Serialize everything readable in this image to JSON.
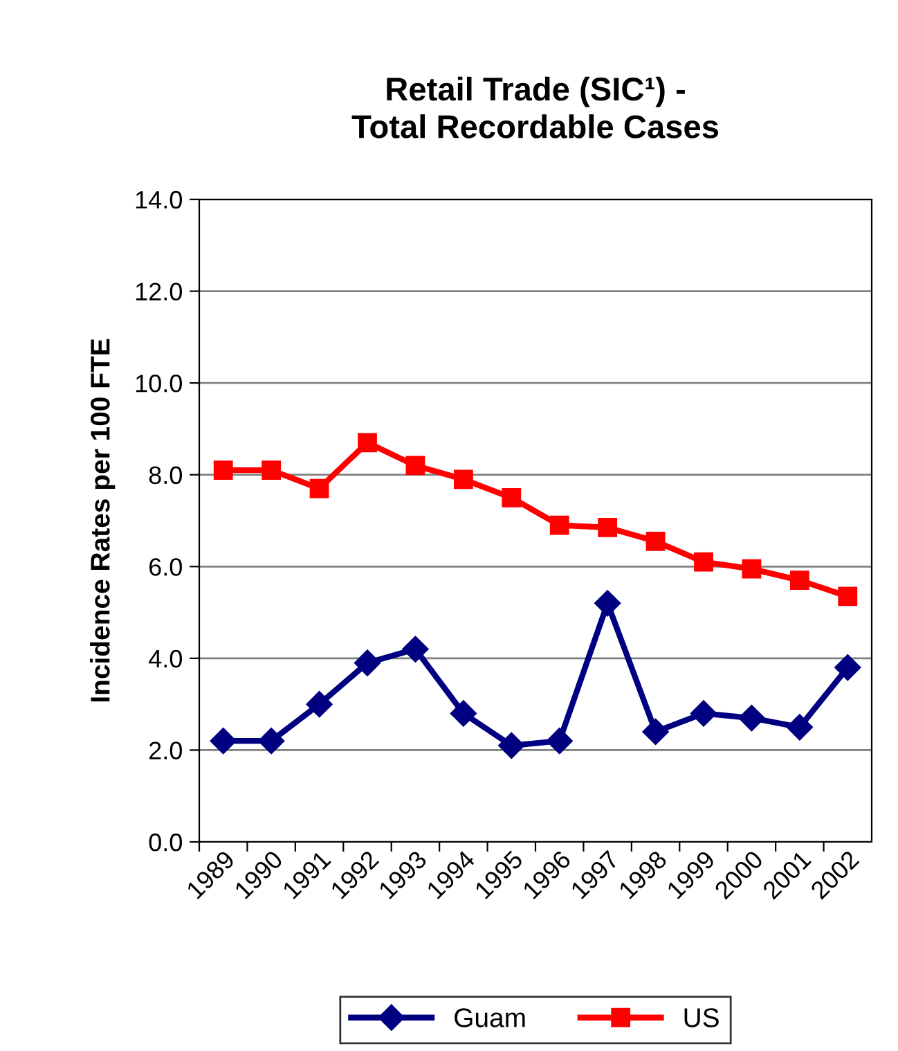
{
  "chart_data": {
    "type": "line",
    "title": "Retail Trade (SIC¹) -\nTotal Recordable Cases",
    "ylabel": "Incidence Rates per 100 FTE",
    "categories": [
      "1989",
      "1990",
      "1991",
      "1992",
      "1993",
      "1994",
      "1995",
      "1996",
      "1997",
      "1998",
      "1999",
      "2000",
      "2001",
      "2002"
    ],
    "series": [
      {
        "name": "Guam",
        "color": "#000080",
        "marker": "diamond",
        "values": [
          2.2,
          2.2,
          3.0,
          3.9,
          4.2,
          2.8,
          2.1,
          2.2,
          5.2,
          2.4,
          2.8,
          2.7,
          2.5,
          3.8
        ]
      },
      {
        "name": "US",
        "color": "#ff0000",
        "marker": "square",
        "values": [
          8.1,
          8.1,
          7.7,
          8.7,
          8.2,
          7.9,
          7.5,
          6.9,
          6.85,
          6.55,
          6.1,
          5.95,
          5.7,
          5.35
        ]
      }
    ],
    "ylim": [
      0,
      14
    ],
    "yticks": [
      {
        "value": 0,
        "label": "0.0"
      },
      {
        "value": 2,
        "label": "2.0"
      },
      {
        "value": 4,
        "label": "4.0"
      },
      {
        "value": 6,
        "label": "6.0"
      },
      {
        "value": 8,
        "label": "8.0"
      },
      {
        "value": 10,
        "label": "10.0"
      },
      {
        "value": 12,
        "label": "12.0"
      },
      {
        "value": 14,
        "label": "14.0"
      }
    ],
    "grid": "y",
    "legend": "bottom",
    "line_style": "solid"
  }
}
